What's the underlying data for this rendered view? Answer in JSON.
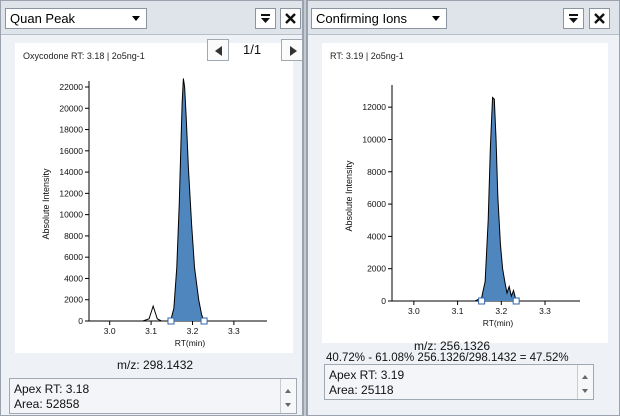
{
  "left": {
    "dropdown": "Quan Peak",
    "pin_icon": "pin-dropdown-icon",
    "close_icon": "close-icon",
    "title": "Oxycodone  RT: 3.18 | 2o5ng-1",
    "page": "1/1",
    "mz": "m/z: 298.1432",
    "apex": "Apex RT: 3.18",
    "area": "Area: 52858"
  },
  "right": {
    "dropdown": "Confirming Ions",
    "pin_icon": "pin-dropdown-icon",
    "close_icon": "close-icon",
    "title": "RT: 3.19 | 2o5ng-1",
    "mz": "m/z: 256.1326",
    "ratio": "40.72% - 61.08% 256.1326/298.1432 = 47.52%",
    "apex": "Apex RT: 3.19",
    "area": "Area: 25118"
  },
  "chart_data": [
    {
      "type": "area",
      "ylabel": "Absolute Intensity",
      "xlabel": "RT(min)",
      "xlim": [
        2.95,
        3.38
      ],
      "ylim": [
        0,
        22000
      ],
      "xticks": [
        "3.0",
        "3.1",
        "3.2",
        "3.3"
      ],
      "yticks": [
        "0",
        "2000",
        "4000",
        "6000",
        "8000",
        "10000",
        "12000",
        "14000",
        "16000",
        "18000",
        "20000",
        "22000"
      ],
      "series": [
        {
          "x": [
            3.02,
            3.08,
            3.095,
            3.105,
            3.115,
            3.125,
            3.14,
            3.148,
            3.155,
            3.162,
            3.168,
            3.172,
            3.175,
            3.178,
            3.181,
            3.185,
            3.19,
            3.198,
            3.205,
            3.215,
            3.222,
            3.228,
            3.24,
            3.3
          ],
          "y": [
            0,
            0,
            200,
            1400,
            200,
            0,
            0,
            150,
            1200,
            5000,
            11000,
            16500,
            20500,
            22800,
            22000,
            19000,
            14500,
            9000,
            5000,
            2000,
            600,
            0,
            0,
            0
          ]
        }
      ],
      "markers": [
        3.148,
        3.228
      ],
      "fill_color": "#4f86bd",
      "grid": false
    },
    {
      "type": "area",
      "ylabel": "Absolute Intensity",
      "xlabel": "RT(min)",
      "xlim": [
        2.95,
        3.38
      ],
      "ylim": [
        0,
        13000
      ],
      "xticks": [
        "3.0",
        "3.1",
        "3.2",
        "3.3"
      ],
      "yticks": [
        "0",
        "2000",
        "4000",
        "6000",
        "8000",
        "10000",
        "12000"
      ],
      "series": [
        {
          "x": [
            3.02,
            3.14,
            3.155,
            3.163,
            3.17,
            3.175,
            3.18,
            3.184,
            3.188,
            3.192,
            3.198,
            3.203,
            3.208,
            3.213,
            3.218,
            3.223,
            3.228,
            3.234,
            3.24,
            3.3
          ],
          "y": [
            0,
            0,
            200,
            1200,
            5000,
            9500,
            12600,
            12500,
            10000,
            6500,
            3500,
            2000,
            1200,
            500,
            900,
            300,
            650,
            0,
            0,
            0
          ]
        }
      ],
      "markers": [
        3.155,
        3.234
      ],
      "fill_color": "#4f86bd",
      "grid": false
    }
  ]
}
